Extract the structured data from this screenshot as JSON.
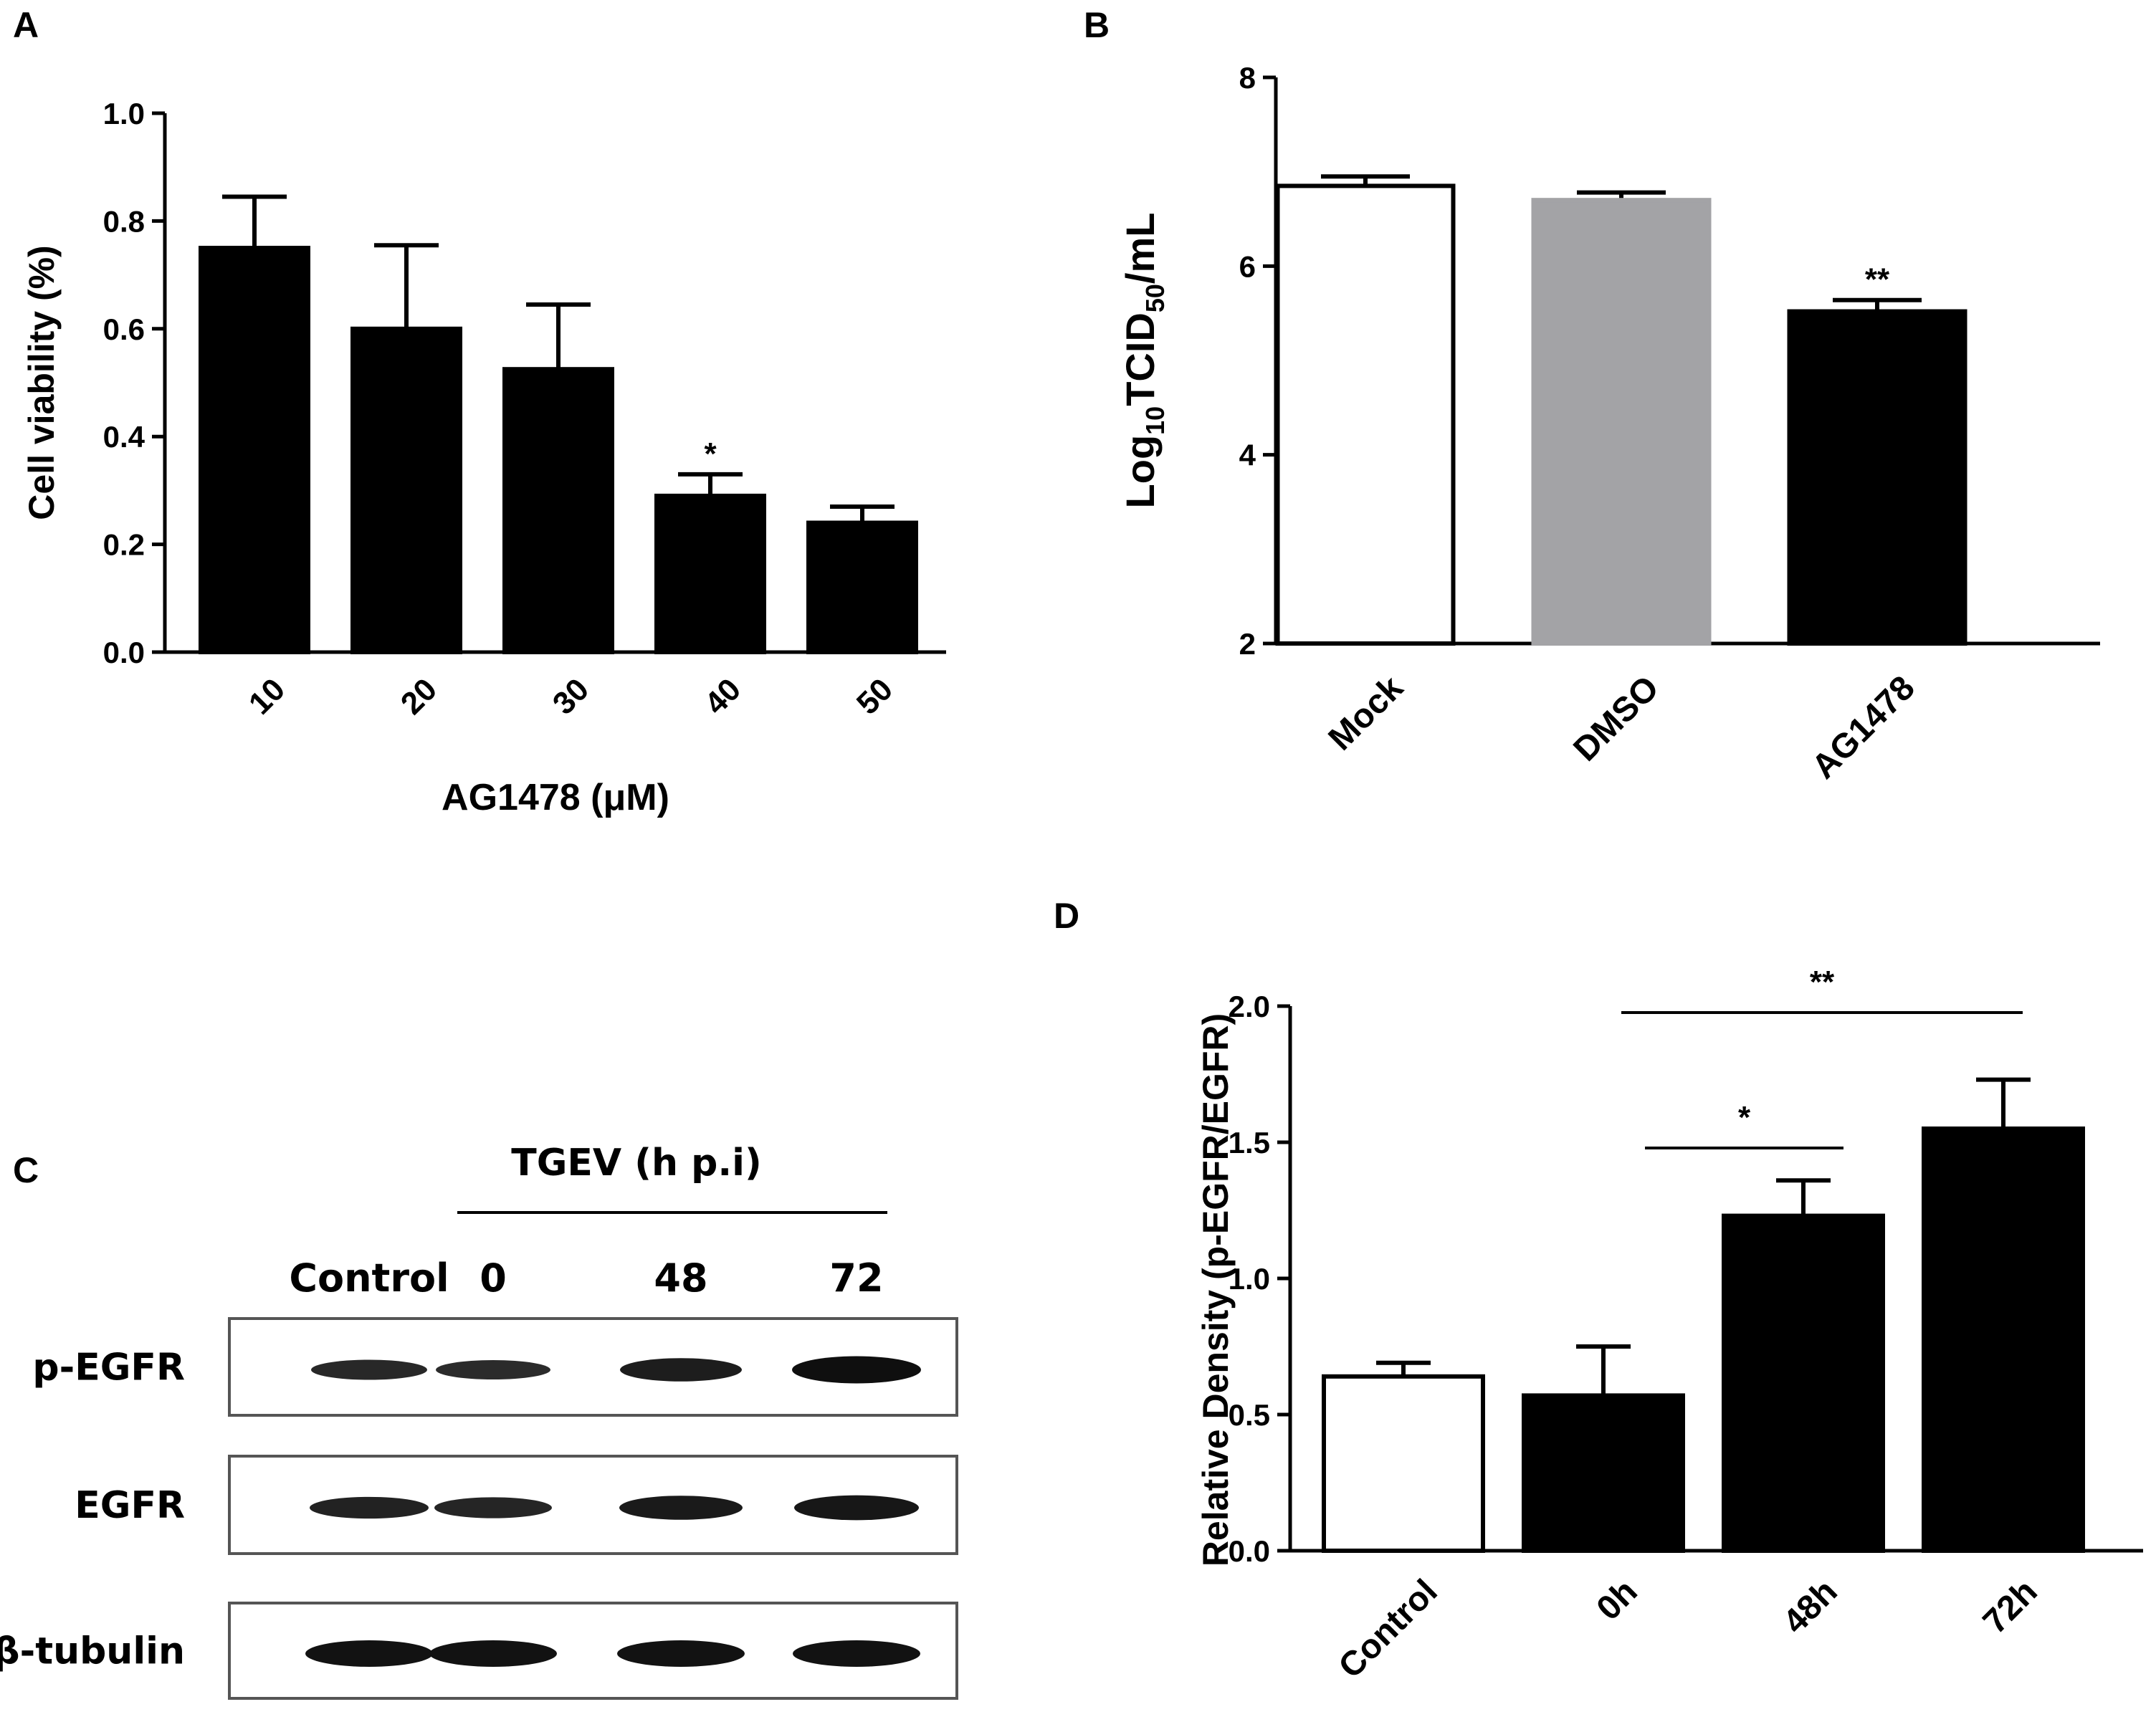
{
  "panels": {
    "A": {
      "letter": "A"
    },
    "B": {
      "letter": "B"
    },
    "C": {
      "letter": "C"
    },
    "D": {
      "letter": "D"
    }
  },
  "chart_data": [
    {
      "panel": "A",
      "type": "bar",
      "categories": [
        "10",
        "20",
        "30",
        "40",
        "50"
      ],
      "values": [
        0.75,
        0.6,
        0.525,
        0.29,
        0.24
      ],
      "errors": [
        0.095,
        0.155,
        0.12,
        0.04,
        0.03
      ],
      "bar_colors": [
        "#000000",
        "#000000",
        "#000000",
        "#000000",
        "#000000"
      ],
      "annotations": [
        "",
        "",
        "",
        "*",
        ""
      ],
      "ylabel": "Cell viability (%)",
      "xlabel": "AG1478 (μM)",
      "ylim": [
        0,
        1.0
      ],
      "yticks": [
        "0.0",
        "0.2",
        "0.4",
        "0.6",
        "0.8",
        "1.0"
      ],
      "grid": false
    },
    {
      "panel": "B",
      "type": "bar",
      "categories": [
        "Mock",
        "DMSO",
        "AG1478"
      ],
      "values": [
        6.85,
        6.7,
        5.52
      ],
      "errors": [
        0.1,
        0.08,
        0.12
      ],
      "bar_colors": [
        "#ffffff",
        "#a3a3a6",
        "#000000"
      ],
      "annotations": [
        "",
        "",
        "**"
      ],
      "ylabel": {
        "prefix": "Log",
        "sub1": "10",
        "mid": "TCID",
        "sub2": "50",
        "suffix": "/mL"
      },
      "ylim": [
        2,
        8
      ],
      "yticks": [
        "2",
        "4",
        "6",
        "8"
      ],
      "grid": false
    },
    {
      "panel": "D",
      "type": "bar",
      "categories": [
        "Control",
        "0h",
        "48h",
        "72h"
      ],
      "values": [
        0.64,
        0.57,
        1.23,
        1.55
      ],
      "errors": [
        0.05,
        0.18,
        0.13,
        0.18
      ],
      "bar_colors": [
        "#ffffff",
        "#000000",
        "#000000",
        "#000000"
      ],
      "significance": [
        {
          "from": 1,
          "to": 2,
          "label": "*"
        },
        {
          "from": 1,
          "to": 3,
          "label": "**"
        }
      ],
      "ylabel": "Relative Density (p-EGFR/EGFR)",
      "ylim": [
        0,
        2.0
      ],
      "yticks": [
        "0.0",
        "0.5",
        "1.0",
        "1.5",
        "2.0"
      ],
      "grid": false
    }
  ],
  "blot": {
    "group_label": "TGEV (h p.i)",
    "lanes": [
      "Control",
      "0",
      "48",
      "72"
    ],
    "rows": [
      {
        "label": "p-EGFR",
        "intensities": [
          0.55,
          0.5,
          0.75,
          1.0
        ]
      },
      {
        "label": "EGFR",
        "intensities": [
          0.65,
          0.6,
          0.8,
          0.85
        ]
      },
      {
        "label": "β-tubulin",
        "intensities": [
          0.95,
          0.95,
          0.95,
          0.95
        ]
      }
    ]
  }
}
